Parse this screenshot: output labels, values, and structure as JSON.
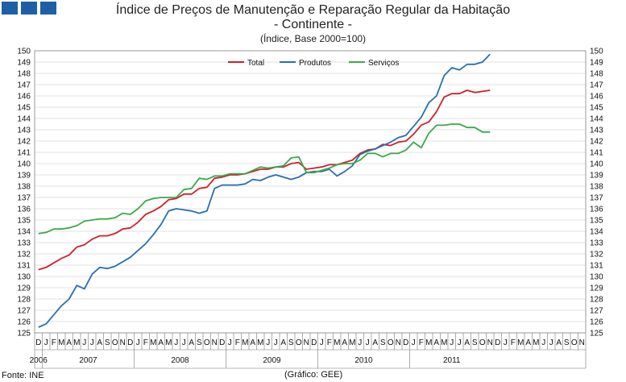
{
  "header": {
    "title": "Índice de Preços de Manutenção e Reparação Regular da Habitação",
    "subtitle": "- Continente -",
    "unit": "(Índice, Base 2000=100)"
  },
  "footer": {
    "source": "Fonte: INE",
    "credit": "(Gráfico: GEE)"
  },
  "colors": {
    "logo": "#1f5fa6",
    "total": "#d0202a",
    "produtos": "#2a6fb0",
    "servicos": "#3aaa4a"
  },
  "chart_data": {
    "type": "line",
    "title": "Índice de Preços de Manutenção e Reparação Regular da Habitação",
    "ylim": [
      125,
      150
    ],
    "yticks": [
      125,
      126,
      127,
      128,
      129,
      130,
      131,
      132,
      133,
      134,
      135,
      136,
      137,
      138,
      139,
      140,
      141,
      142,
      143,
      144,
      145,
      146,
      147,
      148,
      149,
      150
    ],
    "legend_position": "top-center",
    "grid": true,
    "month_labels": [
      "D",
      "J",
      "F",
      "M",
      "A",
      "M",
      "J",
      "J",
      "A",
      "S",
      "O",
      "N",
      "D",
      "J",
      "F",
      "M",
      "A",
      "M",
      "J",
      "J",
      "A",
      "S",
      "O",
      "N",
      "D",
      "J",
      "F",
      "M",
      "A",
      "M",
      "J",
      "J",
      "A",
      "S",
      "O",
      "N",
      "D",
      "J",
      "F",
      "M",
      "A",
      "M",
      "J",
      "J",
      "A",
      "S",
      "O",
      "N",
      "D",
      "J",
      "F",
      "M",
      "A",
      "M",
      "J",
      "J",
      "A",
      "S",
      "O",
      "N",
      "D",
      "J",
      "F",
      "M",
      "A",
      "M",
      "J",
      "J",
      "A",
      "S",
      "O",
      "N"
    ],
    "year_labels": [
      {
        "label": "2006",
        "start": 0,
        "end": 0
      },
      {
        "label": "2007",
        "start": 1,
        "end": 12
      },
      {
        "label": "2008",
        "start": 13,
        "end": 24
      },
      {
        "label": "2009",
        "start": 25,
        "end": 36
      },
      {
        "label": "2010",
        "start": 37,
        "end": 48
      },
      {
        "label": "2011",
        "start": 49,
        "end": 59
      }
    ],
    "x": [
      "2006-12",
      "2007-01",
      "2007-02",
      "2007-03",
      "2007-04",
      "2007-05",
      "2007-06",
      "2007-07",
      "2007-08",
      "2007-09",
      "2007-10",
      "2007-11",
      "2007-12",
      "2008-01",
      "2008-02",
      "2008-03",
      "2008-04",
      "2008-05",
      "2008-06",
      "2008-07",
      "2008-08",
      "2008-09",
      "2008-10",
      "2008-11",
      "2008-12",
      "2009-01",
      "2009-02",
      "2009-03",
      "2009-04",
      "2009-05",
      "2009-06",
      "2009-07",
      "2009-08",
      "2009-09",
      "2009-10",
      "2009-11",
      "2009-12",
      "2010-01",
      "2010-02",
      "2010-03",
      "2010-04",
      "2010-05",
      "2010-06",
      "2010-07",
      "2010-08",
      "2010-09",
      "2010-10",
      "2010-11",
      "2010-12",
      "2011-01",
      "2011-02",
      "2011-03",
      "2011-04",
      "2011-05",
      "2011-06",
      "2011-07",
      "2011-08",
      "2011-09",
      "2011-10",
      "2011-11"
    ],
    "series": [
      {
        "name": "Total",
        "values": [
          130.6,
          130.8,
          131.2,
          131.6,
          131.9,
          132.6,
          132.8,
          133.3,
          133.6,
          133.6,
          133.8,
          134.2,
          134.3,
          134.8,
          135.5,
          135.8,
          136.2,
          136.8,
          136.9,
          137.3,
          137.3,
          137.8,
          137.9,
          138.7,
          138.8,
          139.0,
          139.0,
          139.1,
          139.3,
          139.5,
          139.5,
          139.7,
          139.7,
          140.0,
          140.1,
          139.5,
          139.6,
          139.7,
          139.9,
          139.9,
          140.1,
          140.3,
          140.9,
          141.2,
          141.3,
          141.7,
          141.6,
          141.9,
          142.0,
          142.6,
          143.4,
          143.7,
          144.6,
          145.9,
          146.2,
          146.2,
          146.5,
          146.3,
          146.4,
          146.5
        ]
      },
      {
        "name": "Produtos",
        "values": [
          125.5,
          125.8,
          126.6,
          127.4,
          128.0,
          129.2,
          128.9,
          130.2,
          130.8,
          130.7,
          130.9,
          131.3,
          131.7,
          132.3,
          132.9,
          133.7,
          134.6,
          135.8,
          136.0,
          135.9,
          135.8,
          135.6,
          135.8,
          137.8,
          138.1,
          138.1,
          138.1,
          138.2,
          138.6,
          138.5,
          138.8,
          139.0,
          138.8,
          138.6,
          138.8,
          139.2,
          139.3,
          139.3,
          139.5,
          138.9,
          139.3,
          139.8,
          140.8,
          141.1,
          141.3,
          141.6,
          141.9,
          142.3,
          142.5,
          143.3,
          144.1,
          145.4,
          146.0,
          147.8,
          148.5,
          148.3,
          148.8,
          148.8,
          149.0,
          149.7
        ]
      },
      {
        "name": "Serviços",
        "values": [
          133.8,
          133.9,
          134.2,
          134.2,
          134.3,
          134.5,
          134.9,
          135.0,
          135.1,
          135.1,
          135.2,
          135.6,
          135.5,
          136.0,
          136.7,
          136.9,
          137.0,
          137.0,
          137.0,
          137.7,
          137.8,
          138.7,
          138.6,
          138.9,
          138.9,
          139.1,
          139.1,
          139.1,
          139.4,
          139.7,
          139.6,
          139.7,
          139.8,
          140.5,
          140.6,
          139.2,
          139.2,
          139.4,
          139.6,
          139.9,
          140.0,
          140.0,
          140.3,
          140.9,
          140.9,
          140.6,
          140.9,
          140.9,
          141.2,
          141.9,
          141.4,
          142.7,
          143.4,
          143.4,
          143.5,
          143.5,
          143.2,
          143.2,
          142.8,
          142.8
        ]
      }
    ]
  }
}
